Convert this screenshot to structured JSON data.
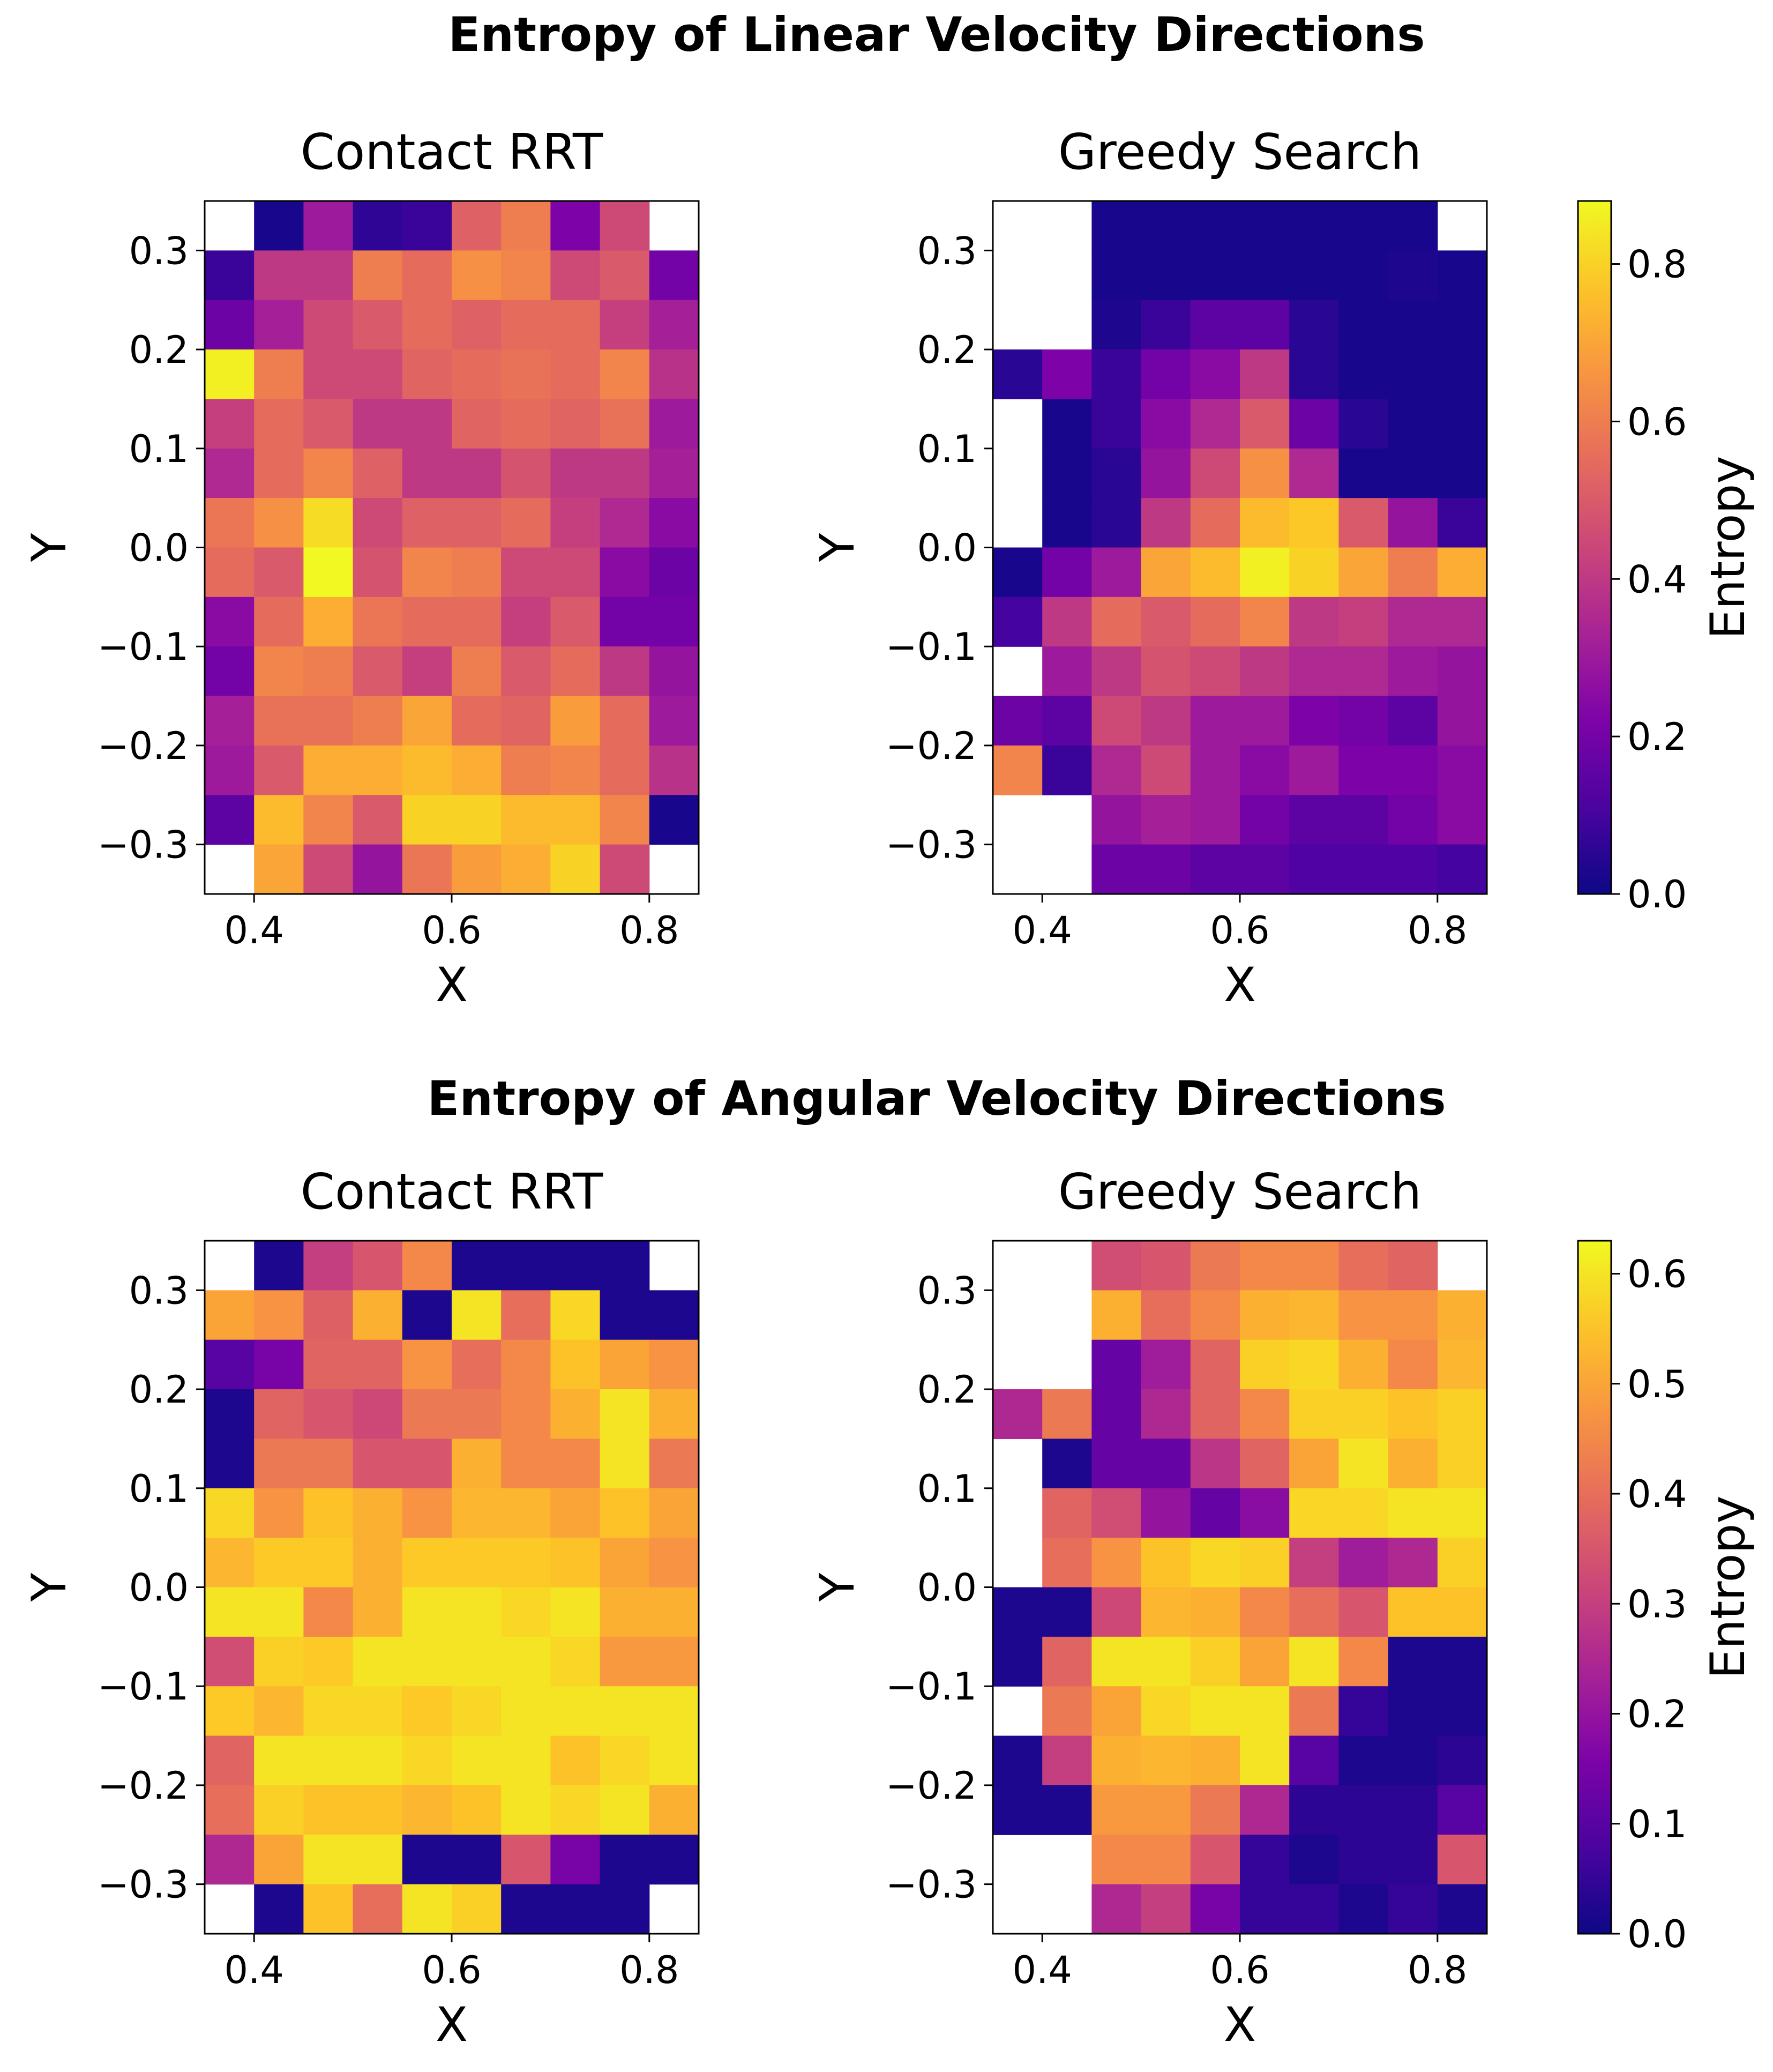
{
  "figure_titles": [
    "Entropy of Linear Velocity Directions",
    "Entropy of Angular Velocity Directions"
  ],
  "colorbar_label": "Entropy",
  "chart_data": [
    {
      "type": "heatmap",
      "title": "Contact RRT",
      "group": "Entropy of Linear Velocity Directions",
      "xlabel": "X",
      "ylabel": "Y",
      "xlim": [
        0.35,
        0.85
      ],
      "ylim": [
        -0.35,
        0.35
      ],
      "xticks": [
        "0.4",
        "0.6",
        "0.8"
      ],
      "yticks": [
        "0.3",
        "0.2",
        "0.1",
        "0.0",
        "−0.1",
        "−0.2",
        "−0.3"
      ],
      "x_centers": [
        0.375,
        0.425,
        0.475,
        0.525,
        0.575,
        0.625,
        0.675,
        0.725,
        0.775,
        0.825
      ],
      "y_centers_top_to_bottom": [
        0.325,
        0.275,
        0.225,
        0.175,
        0.125,
        0.075,
        0.025,
        -0.025,
        -0.075,
        -0.125,
        -0.175,
        -0.225,
        -0.275,
        -0.325
      ],
      "vmin": 0,
      "vmax": 0.88,
      "values": [
        [
          null,
          0.02,
          0.3,
          0.06,
          0.08,
          0.52,
          0.6,
          0.22,
          0.45,
          null
        ],
        [
          0.08,
          0.4,
          0.4,
          0.6,
          0.55,
          0.65,
          0.62,
          0.45,
          0.5,
          0.2
        ],
        [
          0.18,
          0.32,
          0.45,
          0.5,
          0.55,
          0.52,
          0.55,
          0.55,
          0.42,
          0.32
        ],
        [
          0.86,
          0.6,
          0.45,
          0.45,
          0.53,
          0.55,
          0.57,
          0.55,
          0.62,
          0.38
        ],
        [
          0.42,
          0.55,
          0.5,
          0.4,
          0.4,
          0.53,
          0.55,
          0.53,
          0.57,
          0.3
        ],
        [
          0.35,
          0.55,
          0.62,
          0.52,
          0.4,
          0.4,
          0.48,
          0.4,
          0.4,
          0.32
        ],
        [
          0.58,
          0.65,
          0.82,
          0.45,
          0.52,
          0.52,
          0.55,
          0.42,
          0.35,
          0.25
        ],
        [
          0.55,
          0.5,
          0.88,
          0.48,
          0.62,
          0.6,
          0.45,
          0.45,
          0.25,
          0.18
        ],
        [
          0.25,
          0.55,
          0.72,
          0.58,
          0.55,
          0.55,
          0.42,
          0.5,
          0.2,
          0.2
        ],
        [
          0.2,
          0.62,
          0.6,
          0.5,
          0.42,
          0.6,
          0.5,
          0.55,
          0.4,
          0.28
        ],
        [
          0.32,
          0.57,
          0.57,
          0.6,
          0.7,
          0.55,
          0.53,
          0.68,
          0.55,
          0.3
        ],
        [
          0.3,
          0.5,
          0.72,
          0.72,
          0.75,
          0.72,
          0.6,
          0.62,
          0.55,
          0.38
        ],
        [
          0.15,
          0.75,
          0.62,
          0.5,
          0.8,
          0.8,
          0.75,
          0.75,
          0.62,
          0.02
        ],
        [
          null,
          0.7,
          0.45,
          0.28,
          0.58,
          0.68,
          0.72,
          0.8,
          0.45,
          null
        ]
      ]
    },
    {
      "type": "heatmap",
      "title": "Greedy Search",
      "group": "Entropy of Linear Velocity Directions",
      "xlabel": "X",
      "ylabel": "Y",
      "xlim": [
        0.35,
        0.85
      ],
      "ylim": [
        -0.35,
        0.35
      ],
      "xticks": [
        "0.4",
        "0.6",
        "0.8"
      ],
      "yticks": [
        "0.3",
        "0.2",
        "0.1",
        "0.0",
        "−0.1",
        "−0.2",
        "−0.3"
      ],
      "x_centers": [
        0.375,
        0.425,
        0.475,
        0.525,
        0.575,
        0.625,
        0.675,
        0.725,
        0.775,
        0.825
      ],
      "y_centers_top_to_bottom": [
        0.325,
        0.275,
        0.225,
        0.175,
        0.125,
        0.075,
        0.025,
        -0.025,
        -0.075,
        -0.125,
        -0.175,
        -0.225,
        -0.275,
        -0.325
      ],
      "vmin": 0,
      "vmax": 0.88,
      "values": [
        [
          null,
          null,
          0.02,
          0.02,
          0.02,
          0.02,
          0.02,
          0.02,
          0.02,
          null
        ],
        [
          null,
          null,
          0.02,
          0.02,
          0.02,
          0.02,
          0.02,
          0.02,
          0.03,
          0.02
        ],
        [
          null,
          null,
          0.03,
          0.08,
          0.15,
          0.15,
          0.05,
          0.02,
          0.02,
          0.02
        ],
        [
          0.05,
          0.22,
          0.08,
          0.2,
          0.25,
          0.4,
          0.05,
          0.02,
          0.02,
          0.02
        ],
        [
          null,
          0.02,
          0.08,
          0.25,
          0.35,
          0.5,
          0.18,
          0.05,
          0.02,
          0.02
        ],
        [
          null,
          0.02,
          0.05,
          0.28,
          0.45,
          0.65,
          0.35,
          0.02,
          0.02,
          0.02
        ],
        [
          null,
          0.02,
          0.05,
          0.4,
          0.55,
          0.75,
          0.78,
          0.5,
          0.28,
          0.08
        ],
        [
          0.02,
          0.2,
          0.3,
          0.7,
          0.75,
          0.86,
          0.8,
          0.7,
          0.6,
          0.72
        ],
        [
          0.1,
          0.4,
          0.55,
          0.5,
          0.55,
          0.62,
          0.4,
          0.42,
          0.35,
          0.35
        ],
        [
          null,
          0.3,
          0.4,
          0.48,
          0.45,
          0.4,
          0.35,
          0.35,
          0.3,
          0.28
        ],
        [
          0.18,
          0.15,
          0.45,
          0.4,
          0.3,
          0.3,
          0.22,
          0.2,
          0.15,
          0.28
        ],
        [
          0.62,
          0.08,
          0.35,
          0.45,
          0.3,
          0.25,
          0.3,
          0.22,
          0.22,
          0.25
        ],
        [
          null,
          null,
          0.28,
          0.32,
          0.3,
          0.2,
          0.15,
          0.15,
          0.2,
          0.25
        ],
        [
          null,
          null,
          0.18,
          0.18,
          0.15,
          0.15,
          0.12,
          0.12,
          0.12,
          0.1
        ]
      ]
    },
    {
      "type": "heatmap",
      "title": "Contact RRT",
      "group": "Entropy of Angular Velocity Directions",
      "xlabel": "X",
      "ylabel": "Y",
      "xlim": [
        0.35,
        0.85
      ],
      "ylim": [
        -0.35,
        0.35
      ],
      "xticks": [
        "0.4",
        "0.6",
        "0.8"
      ],
      "yticks": [
        "0.3",
        "0.2",
        "0.1",
        "0.0",
        "−0.1",
        "−0.2",
        "−0.3"
      ],
      "x_centers": [
        0.375,
        0.425,
        0.475,
        0.525,
        0.575,
        0.625,
        0.675,
        0.725,
        0.775,
        0.825
      ],
      "y_centers_top_to_bottom": [
        0.325,
        0.275,
        0.225,
        0.175,
        0.125,
        0.075,
        0.025,
        -0.025,
        -0.075,
        -0.125,
        -0.175,
        -0.225,
        -0.275,
        -0.325
      ],
      "vmin": 0,
      "vmax": 0.63,
      "values": [
        [
          null,
          0.02,
          0.3,
          0.35,
          0.45,
          0.02,
          0.02,
          0.02,
          0.02,
          null
        ],
        [
          0.5,
          0.47,
          0.37,
          0.52,
          0.02,
          0.6,
          0.4,
          0.58,
          0.02,
          0.02
        ],
        [
          0.1,
          0.15,
          0.38,
          0.38,
          0.47,
          0.4,
          0.45,
          0.55,
          0.5,
          0.47
        ],
        [
          0.02,
          0.38,
          0.35,
          0.32,
          0.42,
          0.42,
          0.45,
          0.52,
          0.6,
          0.52
        ],
        [
          0.02,
          0.42,
          0.42,
          0.35,
          0.35,
          0.52,
          0.45,
          0.45,
          0.6,
          0.42
        ],
        [
          0.58,
          0.47,
          0.55,
          0.52,
          0.47,
          0.53,
          0.53,
          0.5,
          0.55,
          0.5
        ],
        [
          0.53,
          0.56,
          0.56,
          0.52,
          0.56,
          0.56,
          0.56,
          0.55,
          0.5,
          0.47
        ],
        [
          0.6,
          0.6,
          0.45,
          0.52,
          0.6,
          0.6,
          0.58,
          0.6,
          0.52,
          0.52
        ],
        [
          0.33,
          0.57,
          0.56,
          0.6,
          0.6,
          0.6,
          0.6,
          0.58,
          0.48,
          0.48
        ],
        [
          0.56,
          0.53,
          0.58,
          0.58,
          0.56,
          0.58,
          0.6,
          0.6,
          0.6,
          0.6
        ],
        [
          0.38,
          0.6,
          0.6,
          0.6,
          0.58,
          0.6,
          0.6,
          0.55,
          0.58,
          0.6
        ],
        [
          0.4,
          0.57,
          0.55,
          0.55,
          0.53,
          0.55,
          0.6,
          0.58,
          0.6,
          0.52
        ],
        [
          0.25,
          0.5,
          0.6,
          0.6,
          0.02,
          0.02,
          0.35,
          0.15,
          0.02,
          0.02
        ],
        [
          null,
          0.02,
          0.55,
          0.4,
          0.6,
          0.57,
          0.02,
          0.02,
          0.02,
          null
        ]
      ]
    },
    {
      "type": "heatmap",
      "title": "Greedy Search",
      "group": "Entropy of Angular Velocity Directions",
      "xlabel": "X",
      "ylabel": "Y",
      "xlim": [
        0.35,
        0.85
      ],
      "ylim": [
        -0.35,
        0.35
      ],
      "xticks": [
        "0.4",
        "0.6",
        "0.8"
      ],
      "yticks": [
        "0.3",
        "0.2",
        "0.1",
        "0.0",
        "−0.1",
        "−0.2",
        "−0.3"
      ],
      "x_centers": [
        0.375,
        0.425,
        0.475,
        0.525,
        0.575,
        0.625,
        0.675,
        0.725,
        0.775,
        0.825
      ],
      "y_centers_top_to_bottom": [
        0.325,
        0.275,
        0.225,
        0.175,
        0.125,
        0.075,
        0.025,
        -0.025,
        -0.075,
        -0.125,
        -0.175,
        -0.225,
        -0.275,
        -0.325
      ],
      "vmin": 0,
      "vmax": 0.63,
      "values": [
        [
          null,
          null,
          0.33,
          0.35,
          0.42,
          0.45,
          0.45,
          0.4,
          0.38,
          null
        ],
        [
          null,
          null,
          0.52,
          0.4,
          0.45,
          0.52,
          0.53,
          0.47,
          0.47,
          0.52
        ],
        [
          null,
          null,
          0.12,
          0.22,
          0.38,
          0.57,
          0.58,
          0.52,
          0.45,
          0.53
        ],
        [
          0.25,
          0.42,
          0.12,
          0.25,
          0.38,
          0.45,
          0.57,
          0.57,
          0.55,
          0.57
        ],
        [
          null,
          0.02,
          0.12,
          0.12,
          0.28,
          0.38,
          0.5,
          0.6,
          0.52,
          0.57
        ],
        [
          null,
          0.38,
          0.33,
          0.2,
          0.12,
          0.18,
          0.58,
          0.58,
          0.6,
          0.6
        ],
        [
          null,
          0.4,
          0.47,
          0.55,
          0.58,
          0.57,
          0.3,
          0.22,
          0.25,
          0.57
        ],
        [
          0.02,
          0.02,
          0.32,
          0.53,
          0.52,
          0.45,
          0.4,
          0.35,
          0.55,
          0.55
        ],
        [
          0.02,
          0.38,
          0.6,
          0.6,
          0.57,
          0.5,
          0.6,
          0.45,
          0.02,
          0.02
        ],
        [
          null,
          0.42,
          0.5,
          0.58,
          0.6,
          0.6,
          0.42,
          0.05,
          0.02,
          0.02
        ],
        [
          0.02,
          0.3,
          0.52,
          0.53,
          0.52,
          0.6,
          0.1,
          0.02,
          0.02,
          0.04
        ],
        [
          0.02,
          0.02,
          0.48,
          0.48,
          0.42,
          0.25,
          0.04,
          0.04,
          0.04,
          0.1
        ],
        [
          null,
          null,
          0.45,
          0.45,
          0.35,
          0.05,
          0.02,
          0.04,
          0.04,
          0.35
        ],
        [
          null,
          null,
          0.25,
          0.3,
          0.15,
          0.05,
          0.05,
          0.02,
          0.05,
          0.02
        ]
      ]
    }
  ],
  "colorbars": [
    {
      "min": 0,
      "max": 0.88,
      "ticks": [
        "0.0",
        "0.2",
        "0.4",
        "0.6",
        "0.8"
      ],
      "tick_values": [
        0,
        0.2,
        0.4,
        0.6,
        0.8
      ]
    },
    {
      "min": 0,
      "max": 0.63,
      "ticks": [
        "0.0",
        "0.1",
        "0.2",
        "0.3",
        "0.4",
        "0.5",
        "0.6"
      ],
      "tick_values": [
        0,
        0.1,
        0.2,
        0.3,
        0.4,
        0.5,
        0.6
      ]
    }
  ]
}
